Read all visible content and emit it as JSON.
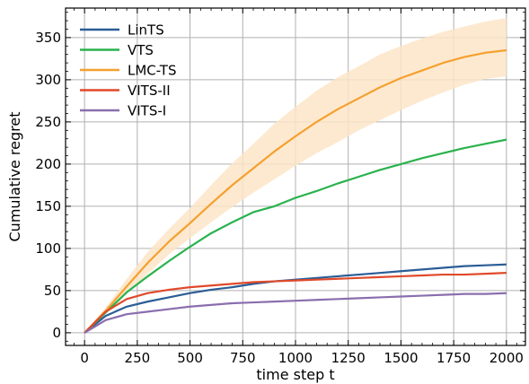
{
  "chart_data": {
    "type": "line",
    "title": "",
    "xlabel": "time step t",
    "ylabel": "Cumulative regret",
    "xlim": [
      -90,
      2090
    ],
    "ylim": [
      -15,
      385
    ],
    "xticks": [
      0,
      250,
      500,
      750,
      1000,
      1250,
      1500,
      1750,
      2000
    ],
    "yticks": [
      0,
      50,
      100,
      150,
      200,
      250,
      300,
      350
    ],
    "grid": true,
    "legend_position": "top-left",
    "series": [
      {
        "name": "LinTS",
        "color": "#2a5d96",
        "x": [
          0,
          100,
          200,
          300,
          400,
          500,
          600,
          700,
          800,
          900,
          1000,
          1100,
          1200,
          1300,
          1400,
          1500,
          1600,
          1700,
          1800,
          1900,
          2000
        ],
        "y": [
          0,
          20,
          31,
          37,
          42,
          47,
          51,
          54,
          58,
          61,
          63,
          65,
          67,
          69,
          71,
          73,
          75,
          77,
          79,
          80,
          81
        ]
      },
      {
        "name": "VTS",
        "color": "#2ab24d",
        "x": [
          0,
          100,
          200,
          300,
          400,
          500,
          600,
          700,
          800,
          900,
          1000,
          1100,
          1200,
          1300,
          1400,
          1500,
          1600,
          1700,
          1800,
          1900,
          2000
        ],
        "y": [
          0,
          24,
          48,
          67,
          85,
          102,
          118,
          131,
          143,
          150,
          160,
          168,
          177,
          185,
          193,
          200,
          207,
          213,
          219,
          224,
          229
        ]
      },
      {
        "name": "LMC-TS",
        "color": "#f5a02e",
        "band_color": "#fde5c8",
        "x": [
          0,
          100,
          200,
          300,
          400,
          500,
          600,
          700,
          800,
          900,
          1000,
          1100,
          1200,
          1300,
          1400,
          1500,
          1600,
          1700,
          1800,
          1900,
          2000
        ],
        "y": [
          0,
          26,
          55,
          83,
          108,
          130,
          153,
          175,
          195,
          215,
          233,
          250,
          265,
          278,
          291,
          302,
          311,
          320,
          327,
          332,
          335
        ],
        "y_lower": [
          0,
          22,
          46,
          70,
          93,
          112,
          131,
          149,
          166,
          182,
          198,
          213,
          226,
          240,
          252,
          264,
          275,
          285,
          294,
          301,
          304
        ],
        "y_upper": [
          0,
          30,
          64,
          96,
          123,
          148,
          175,
          201,
          224,
          248,
          268,
          287,
          303,
          316,
          330,
          340,
          349,
          357,
          363,
          369,
          373
        ]
      },
      {
        "name": "VITS-II",
        "color": "#e04a2a",
        "x": [
          0,
          100,
          200,
          300,
          400,
          500,
          600,
          700,
          800,
          900,
          1000,
          1100,
          1200,
          1300,
          1400,
          1500,
          1600,
          1700,
          1800,
          1900,
          2000
        ],
        "y": [
          0,
          25,
          40,
          47,
          51,
          54,
          56,
          58,
          60,
          61,
          62,
          63,
          64,
          65,
          66,
          67,
          68,
          69,
          69,
          70,
          71
        ]
      },
      {
        "name": "VITS-I",
        "color": "#8a6eae",
        "x": [
          0,
          100,
          200,
          300,
          400,
          500,
          600,
          700,
          800,
          900,
          1000,
          1100,
          1200,
          1300,
          1400,
          1500,
          1600,
          1700,
          1800,
          1900,
          2000
        ],
        "y": [
          0,
          15,
          22,
          25,
          28,
          31,
          33,
          35,
          36,
          37,
          38,
          39,
          40,
          41,
          42,
          43,
          44,
          45,
          46,
          46,
          47
        ]
      }
    ]
  }
}
